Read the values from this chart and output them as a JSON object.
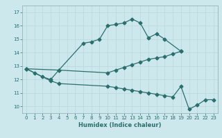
{
  "xlabel": "Humidex (Indice chaleur)",
  "background_color": "#cce8ec",
  "grid_color": "#b8d8dc",
  "line_color": "#2a6e6e",
  "ylim": [
    9.5,
    17.5
  ],
  "xlim": [
    -0.5,
    23.5
  ],
  "yticks": [
    10,
    11,
    12,
    13,
    14,
    15,
    16,
    17
  ],
  "xticks": [
    0,
    1,
    2,
    3,
    4,
    5,
    6,
    7,
    8,
    9,
    10,
    11,
    12,
    13,
    14,
    15,
    16,
    17,
    18,
    19,
    20,
    21,
    22,
    23
  ],
  "top_x": [
    0,
    1,
    2,
    3,
    4,
    7,
    8,
    9,
    10,
    11,
    12,
    13,
    14,
    15,
    16,
    17,
    19
  ],
  "top_y": [
    12.8,
    12.5,
    12.2,
    12.0,
    12.7,
    14.7,
    14.8,
    15.0,
    16.0,
    16.1,
    16.2,
    16.5,
    16.2,
    15.1,
    15.4,
    15.0,
    14.1
  ],
  "mid_x": [
    0,
    4,
    10,
    11,
    12,
    13,
    14,
    15,
    16,
    17,
    18,
    19
  ],
  "mid_y": [
    12.8,
    12.7,
    12.5,
    12.7,
    12.9,
    13.1,
    13.3,
    13.5,
    13.6,
    13.7,
    13.9,
    14.1
  ],
  "bot_x": [
    0,
    3,
    4,
    10,
    11,
    12,
    13,
    14,
    15,
    16,
    17,
    18,
    19,
    20,
    21,
    22,
    23
  ],
  "bot_y": [
    12.8,
    11.9,
    11.7,
    11.5,
    11.4,
    11.3,
    11.2,
    11.1,
    11.0,
    10.9,
    10.8,
    10.7,
    11.5,
    9.8,
    10.1,
    10.5,
    10.5
  ]
}
